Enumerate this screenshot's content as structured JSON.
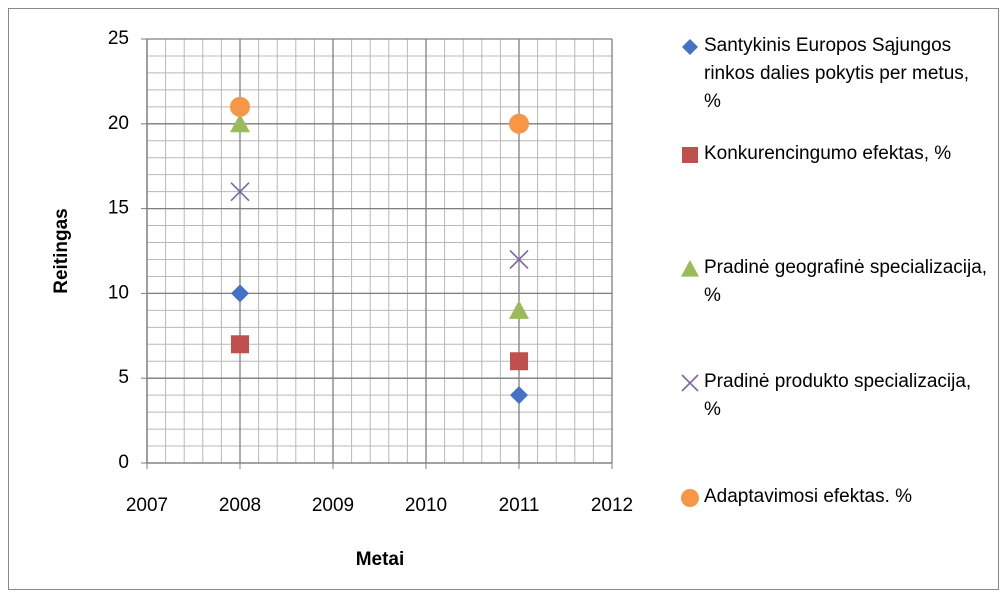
{
  "chart_data": {
    "type": "scatter",
    "x_label": "Metai",
    "y_label": "Reitingas",
    "xlim": [
      2007,
      2012
    ],
    "xticks": [
      2007,
      2008,
      2009,
      2010,
      2011,
      2012
    ],
    "ylim": [
      0,
      25
    ],
    "yticks": [
      0,
      5,
      10,
      15,
      20,
      25
    ],
    "grid": true,
    "minor_grid": true,
    "legend": "right",
    "series": [
      {
        "name": "Santykinis Europos Sąjungos rinkos dalies pokytis per metus, %",
        "color": "#4472c4",
        "marker": "diamond",
        "x": [
          2008,
          2011
        ],
        "values": [
          10,
          4
        ]
      },
      {
        "name": "Konkurencingumo efektas, %",
        "color": "#c0504d",
        "marker": "square",
        "x": [
          2008,
          2011
        ],
        "values": [
          7,
          6
        ]
      },
      {
        "name": "Pradinė geografinė specializacija, %",
        "color": "#9bbb59",
        "marker": "triangle",
        "x": [
          2008,
          2011
        ],
        "values": [
          20,
          9
        ]
      },
      {
        "name": "Pradinė produkto specializacija, %",
        "color": "#8064a2",
        "marker": "x",
        "x": [
          2008,
          2011
        ],
        "values": [
          16,
          12
        ]
      },
      {
        "name": "Adaptavimosi efektas. %",
        "color": "#f79646",
        "marker": "circle",
        "x": [
          2008,
          2011
        ],
        "values": [
          21,
          20
        ]
      }
    ]
  }
}
